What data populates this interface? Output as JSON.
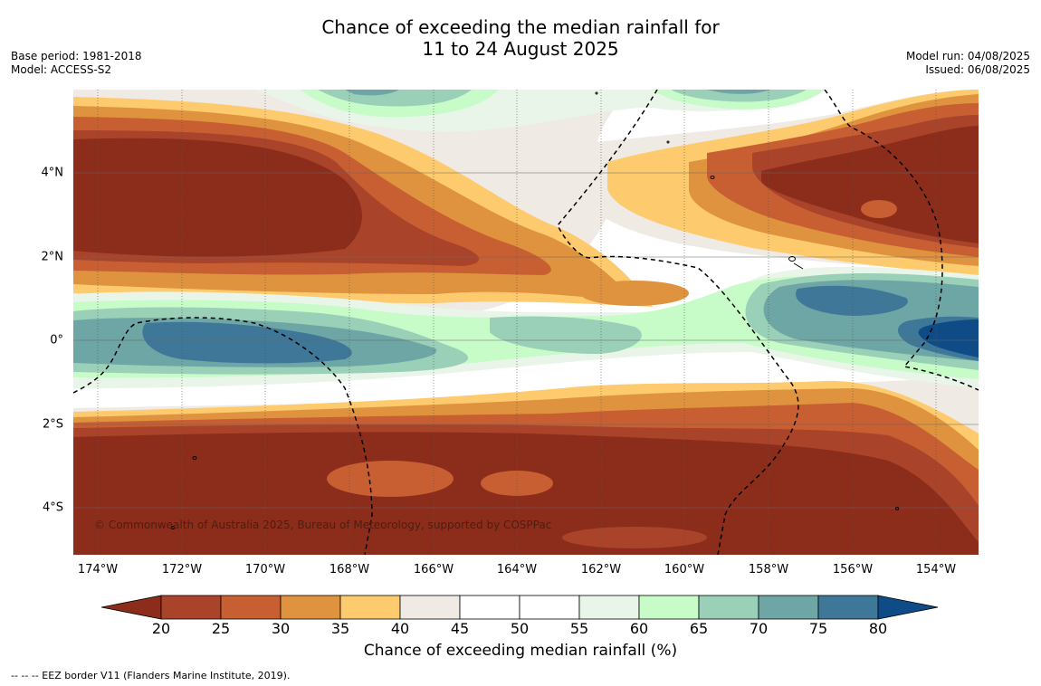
{
  "title": {
    "line1": "Chance of exceeding the median rainfall for",
    "line2": "11 to 24 August 2025"
  },
  "meta": {
    "base_period": "Base period: 1981-2018",
    "model": "Model: ACCESS-S2",
    "model_run": "Model run: 04/08/2025",
    "issued": "Issued: 06/08/2025"
  },
  "map": {
    "copyright": "© Commonwealth of Australia 2025, Bureau of Meteorology, supported by COSPPac",
    "lon_labels": [
      "174°W",
      "172°W",
      "170°W",
      "168°W",
      "166°W",
      "164°W",
      "162°W",
      "160°W",
      "158°W",
      "156°W",
      "154°W"
    ],
    "lat_labels": [
      "4°N",
      "2°N",
      "0°",
      "2°S",
      "4°S"
    ]
  },
  "colorbar": {
    "label": "Chance of exceeding median rainfall (%)",
    "ticks": [
      "20",
      "25",
      "30",
      "35",
      "40",
      "45",
      "50",
      "55",
      "60",
      "65",
      "70",
      "75",
      "80"
    ],
    "colors": [
      "#8c2d1c",
      "#a9432a",
      "#c85f32",
      "#e0933f",
      "#fdcb6e",
      "#efeae4",
      "#ffffff",
      "#ffffff",
      "#e9f5e9",
      "#c7fcc8",
      "#9acfb8",
      "#6ea6a6",
      "#3f7799",
      "#0f4c87"
    ]
  },
  "footnote": "--  --  -- EEZ border V11 (Flanders Marine Institute, 2019)."
}
